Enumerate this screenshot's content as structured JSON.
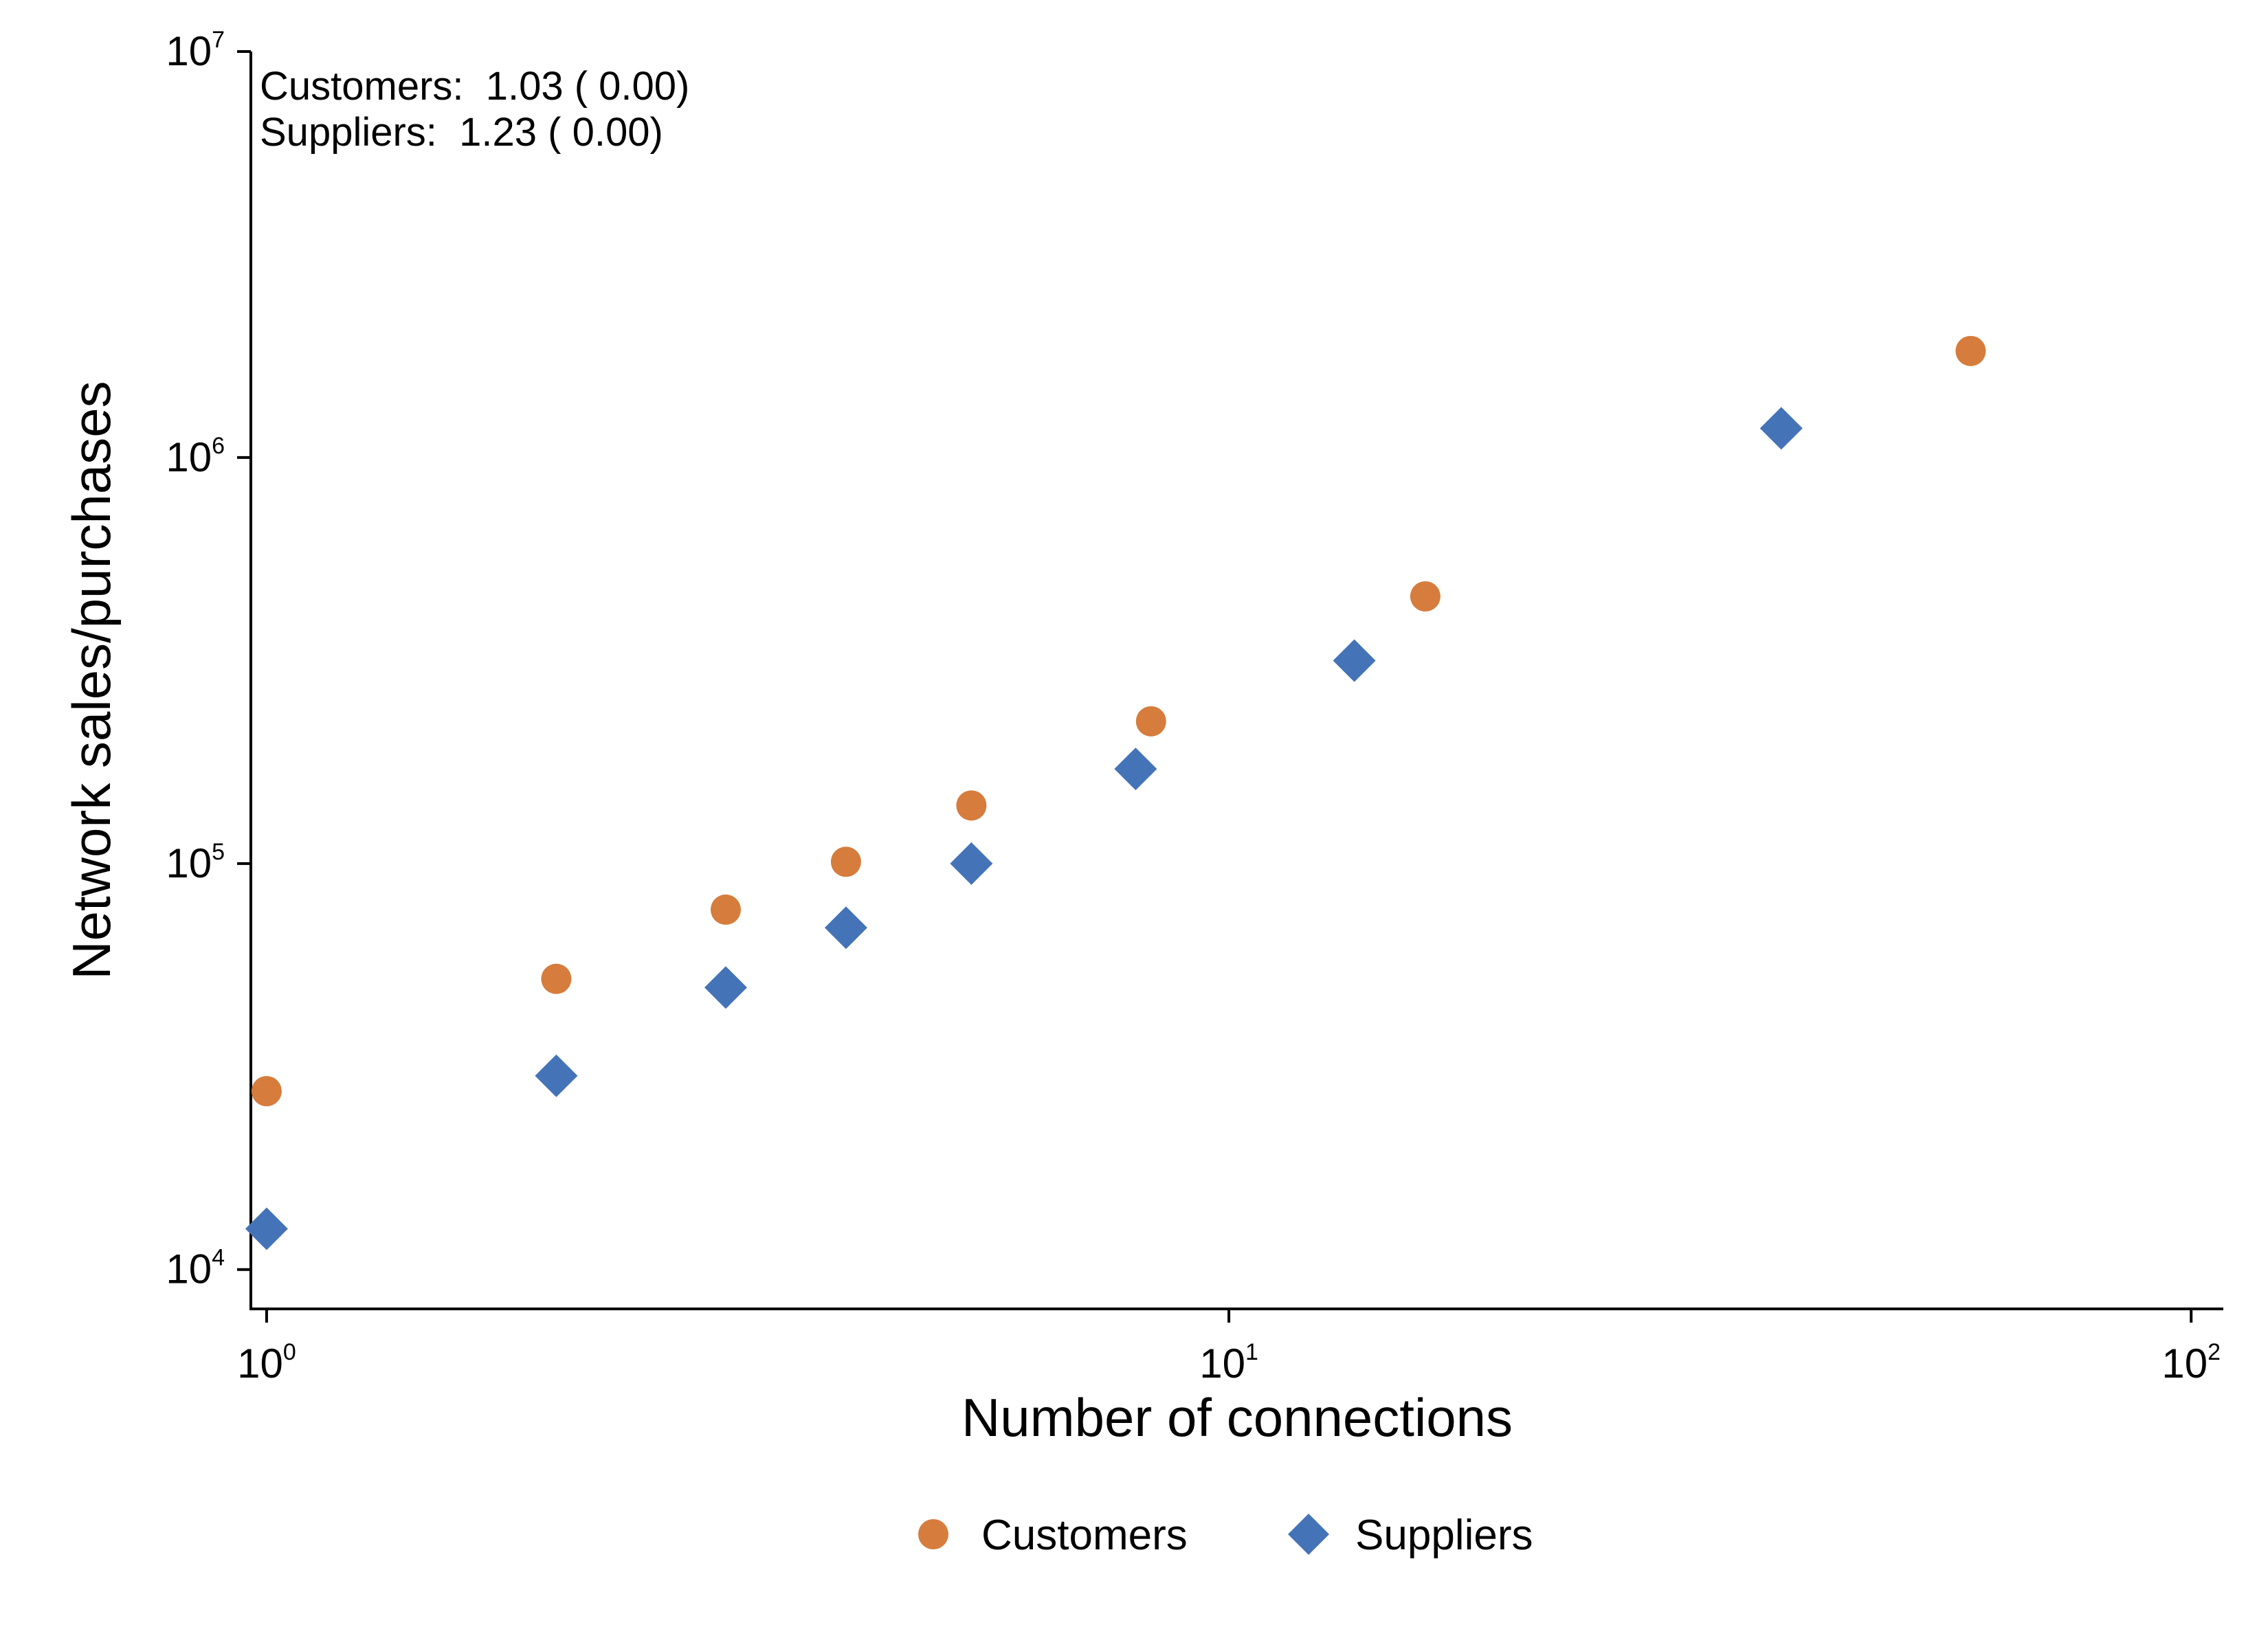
{
  "chart_data": {
    "type": "scatter",
    "xlabel": "Number of connections",
    "ylabel": "Network sales/purchases",
    "xscale": "log",
    "yscale": "log",
    "xlim": [
      0.963,
      108
    ],
    "ylim": [
      8000,
      10000000
    ],
    "xticks": [
      {
        "value": 1,
        "base": "10",
        "exp": "0"
      },
      {
        "value": 10,
        "base": "10",
        "exp": "1"
      },
      {
        "value": 100,
        "base": "10",
        "exp": "2"
      }
    ],
    "yticks": [
      {
        "value": 10000,
        "base": "10",
        "exp": "4"
      },
      {
        "value": 100000,
        "base": "10",
        "exp": "5"
      },
      {
        "value": 1000000,
        "base": "10",
        "exp": "6"
      },
      {
        "value": 10000000,
        "base": "10",
        "exp": "7"
      }
    ],
    "grid": false,
    "legend_position": "bottom",
    "annotations": [
      "Customers:  1.03 ( 0.00)",
      "Suppliers:  1.23 ( 0.00)"
    ],
    "series": [
      {
        "name": "Customers",
        "marker": "circle",
        "color": "#d67c3c",
        "points": [
          {
            "x": 1,
            "y": 27500
          },
          {
            "x": 2,
            "y": 52000
          },
          {
            "x": 3,
            "y": 77000
          },
          {
            "x": 4,
            "y": 101000
          },
          {
            "x": 5.4,
            "y": 139000
          },
          {
            "x": 8.3,
            "y": 224000
          },
          {
            "x": 16,
            "y": 455000
          },
          {
            "x": 59,
            "y": 1830000
          }
        ]
      },
      {
        "name": "Suppliers",
        "marker": "diamond",
        "color": "#4473b8",
        "points": [
          {
            "x": 1,
            "y": 12600
          },
          {
            "x": 2,
            "y": 30000
          },
          {
            "x": 3,
            "y": 49500
          },
          {
            "x": 4,
            "y": 69500
          },
          {
            "x": 5.4,
            "y": 100000
          },
          {
            "x": 8,
            "y": 171000
          },
          {
            "x": 13.5,
            "y": 316000
          },
          {
            "x": 37.5,
            "y": 1180000
          }
        ]
      }
    ]
  }
}
